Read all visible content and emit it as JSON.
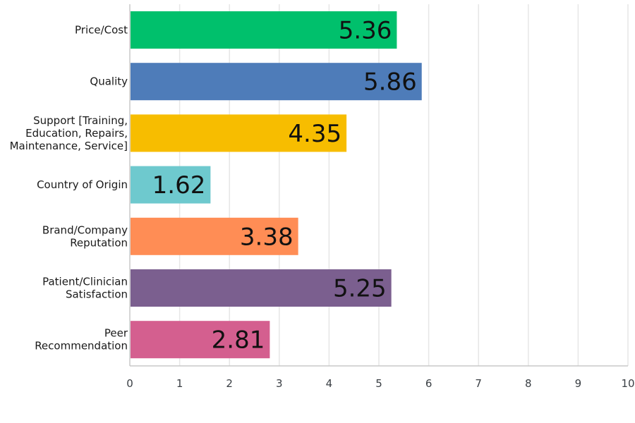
{
  "chart_data": {
    "type": "bar",
    "orientation": "horizontal",
    "categories": [
      [
        "Price/Cost"
      ],
      [
        "Quality"
      ],
      [
        "Support [Training,",
        "Education, Repairs,",
        "Maintenance, Service]"
      ],
      [
        "Country of Origin"
      ],
      [
        "Brand/Company",
        "Reputation"
      ],
      [
        "Patient/Clinician",
        "Satisfaction"
      ],
      [
        "Peer",
        "Recommendation"
      ]
    ],
    "values": [
      5.36,
      5.86,
      4.35,
      1.62,
      3.38,
      5.25,
      2.81
    ],
    "value_labels": [
      "5.36",
      "5.86",
      "4.35",
      "1.62",
      "3.38",
      "5.25",
      "2.81"
    ],
    "colors": [
      "#00c06c",
      "#4e7cb9",
      "#f7bd00",
      "#6ec9ce",
      "#ff8d55",
      "#7b5f8f",
      "#d45f8f"
    ],
    "xlim": [
      0,
      10
    ],
    "x_ticks": [
      "0",
      "1",
      "2",
      "3",
      "4",
      "5",
      "6",
      "7",
      "8",
      "9",
      "10"
    ],
    "grid": true,
    "title": "",
    "xlabel": "",
    "ylabel": ""
  }
}
